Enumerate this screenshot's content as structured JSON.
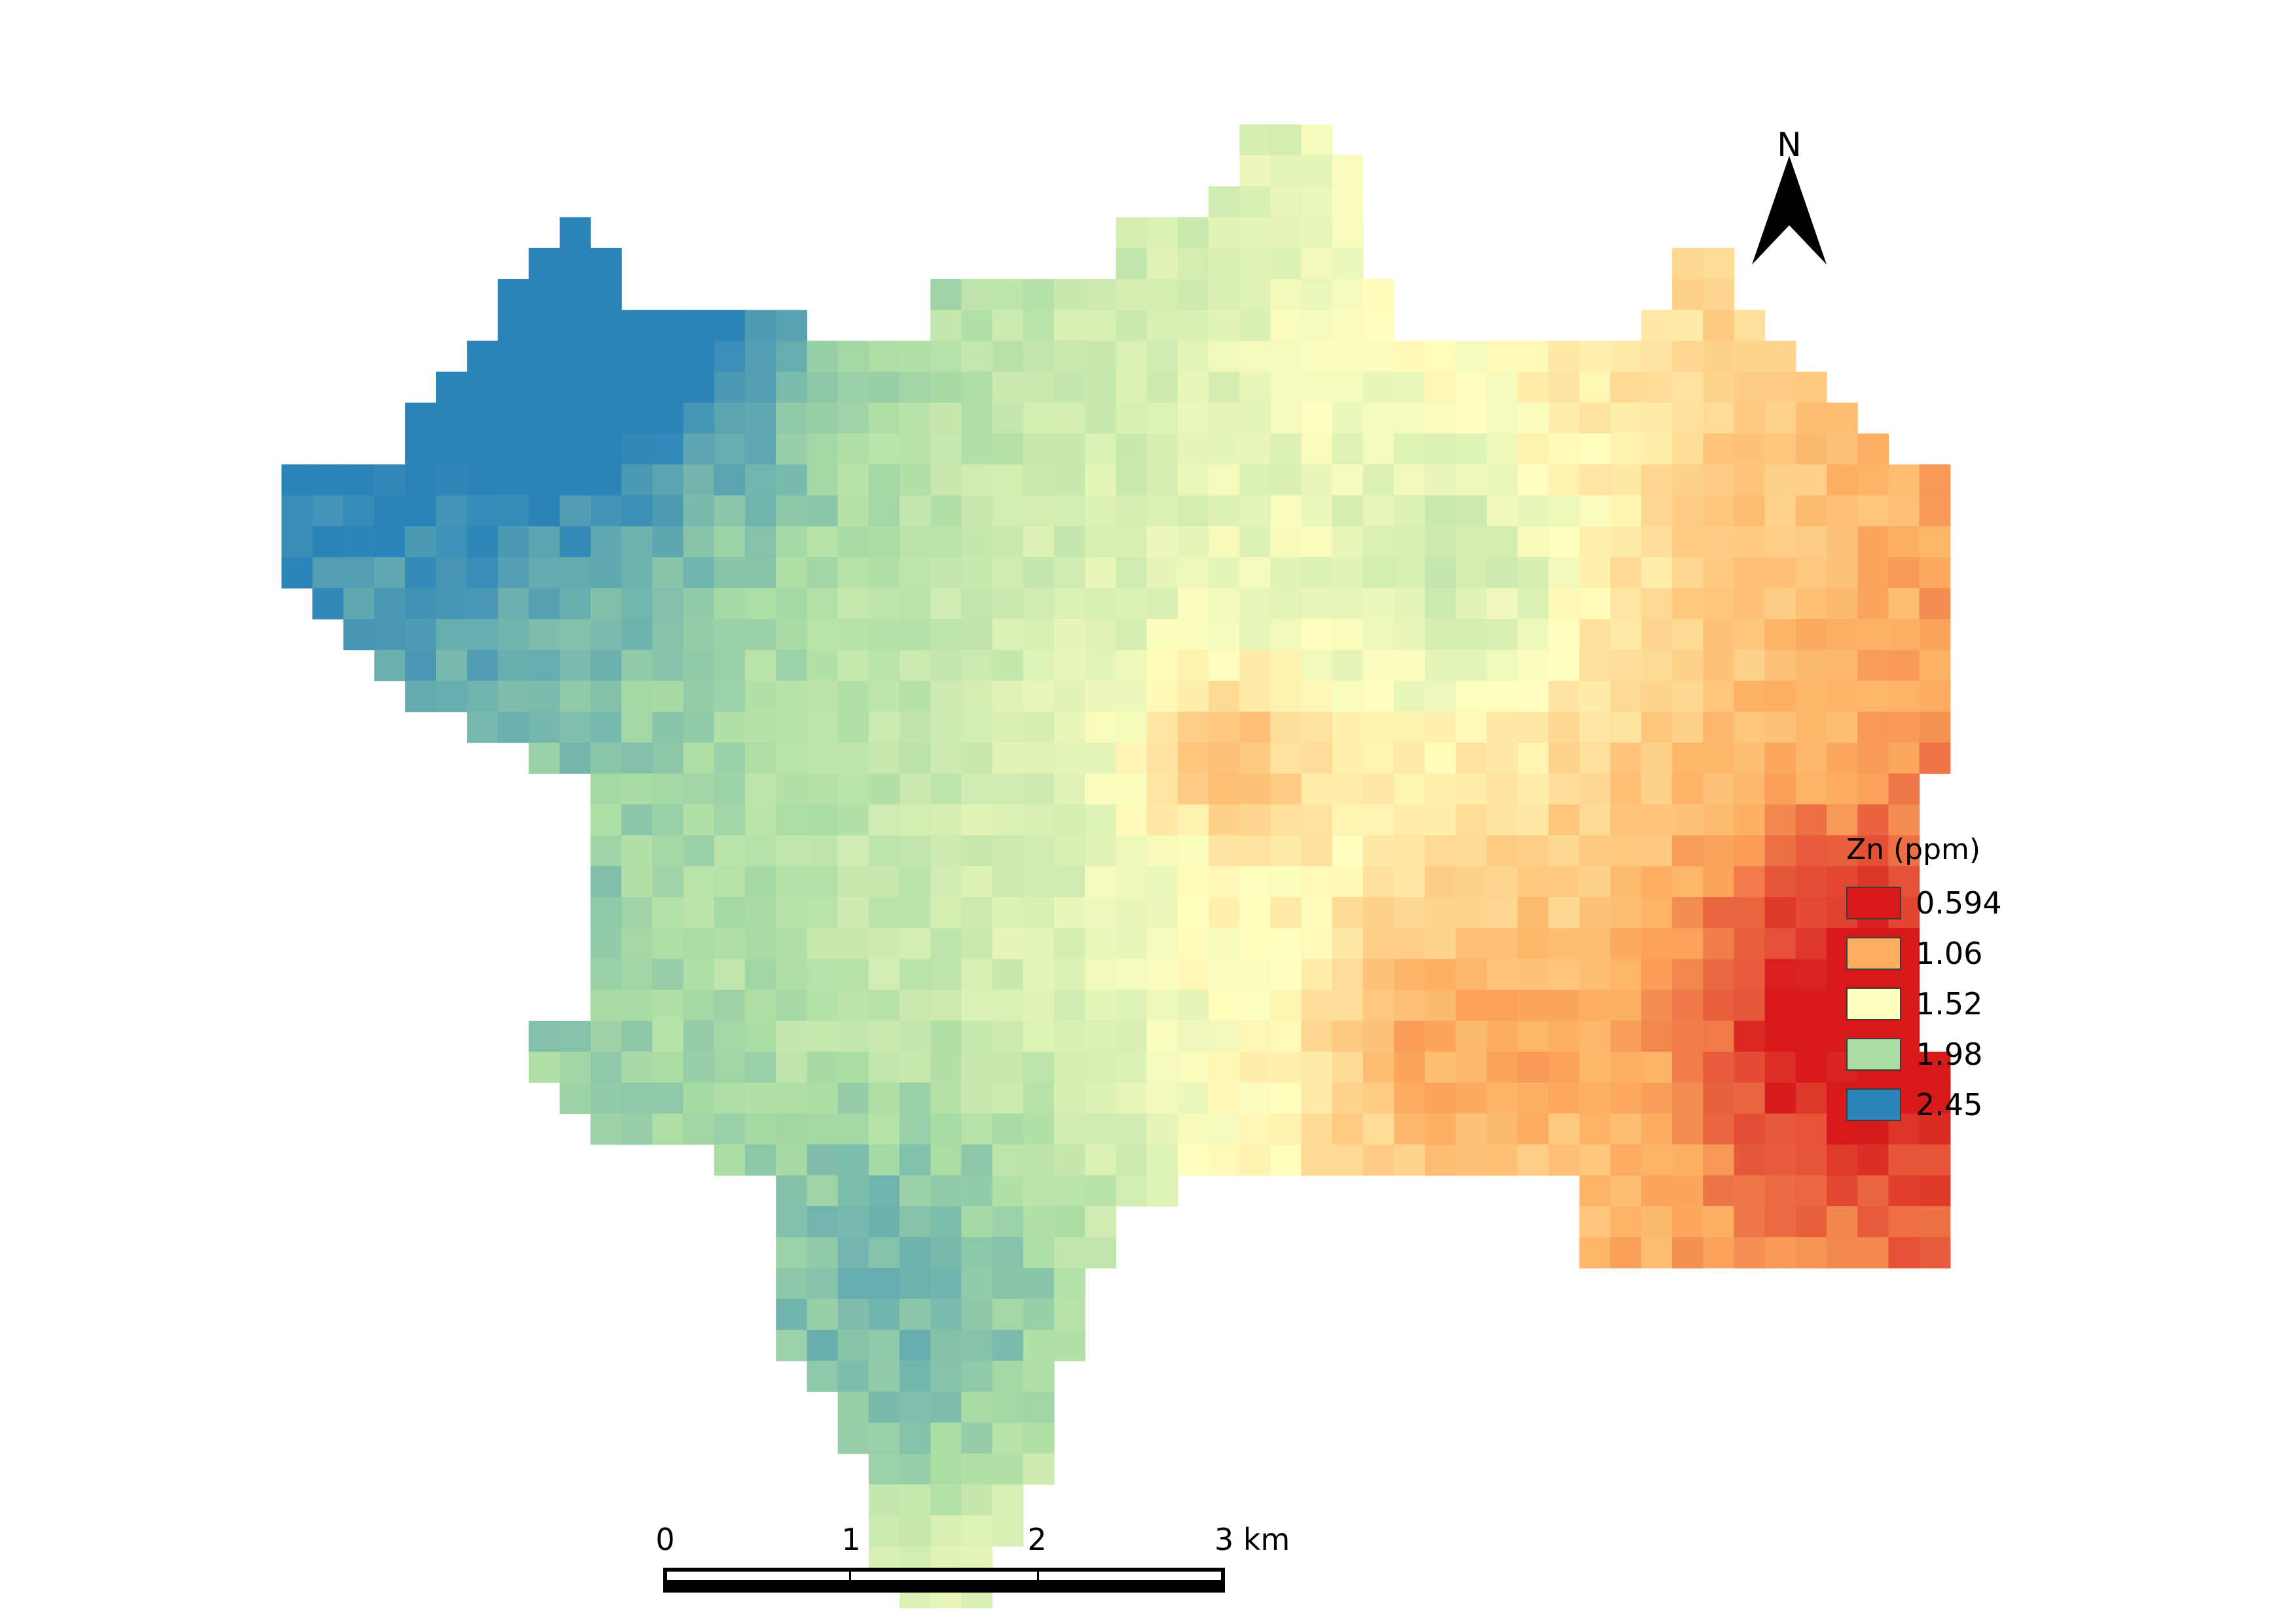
{
  "map": {
    "north_label": "N",
    "scale_bar": {
      "labels": [
        "0",
        "1",
        "2",
        "3 km"
      ],
      "unit": "km"
    }
  },
  "legend": {
    "title": "Zn (ppm)",
    "entries": [
      {
        "label": "0.594",
        "color": "#d7191c"
      },
      {
        "label": "1.06",
        "color": "#fdae61"
      },
      {
        "label": "1.52",
        "color": "#ffffbf"
      },
      {
        "label": "1.98",
        "color": "#abdda4"
      },
      {
        "label": "2.45",
        "color": "#2b83ba"
      }
    ]
  },
  "raster": {
    "color_ramp": [
      "#d7191c",
      "#fdae61",
      "#ffffbf",
      "#abdda4",
      "#2b83ba"
    ],
    "value_min": 0.594,
    "value_max": 2.45
  }
}
